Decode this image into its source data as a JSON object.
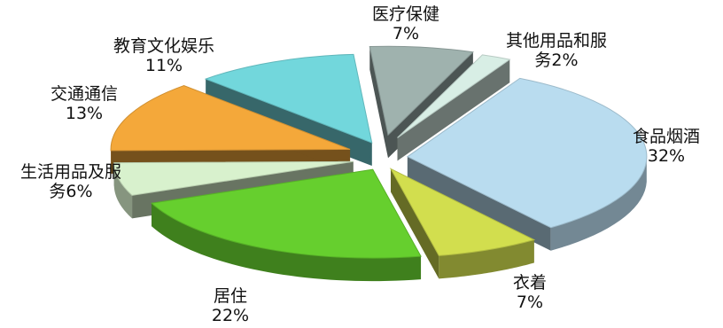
{
  "chart_data": {
    "type": "pie",
    "title": "",
    "style": "3d-exploded",
    "slices": [
      {
        "label": "食品烟酒",
        "value": 32,
        "value_label": "32%",
        "color": "#b9dcef"
      },
      {
        "label": "衣着",
        "value": 7,
        "value_label": "7%",
        "color": "#d2de4e"
      },
      {
        "label": "居住",
        "value": 22,
        "value_label": "22%",
        "color": "#66cf2e"
      },
      {
        "label": "生活用品及服务",
        "value": 6,
        "value_label": "6%",
        "color": "#d8f1cd"
      },
      {
        "label": "交通通信",
        "value": 13,
        "value_label": "13%",
        "color": "#f4a83a"
      },
      {
        "label": "教育文化娱乐",
        "value": 11,
        "value_label": "11%",
        "color": "#72d7dc"
      },
      {
        "label": "医疗保健",
        "value": 7,
        "value_label": "7%",
        "color": "#9fb2ae"
      },
      {
        "label": "其他用品和服务",
        "value": 2,
        "value_label": "2%",
        "color": "#d8eee5"
      }
    ],
    "label_lines": [
      [
        "食品烟酒",
        "32%"
      ],
      [
        "衣着",
        "7%"
      ],
      [
        "居住",
        "22%"
      ],
      [
        "生活用品及服",
        "务6%"
      ],
      [
        "交通通信",
        "13%"
      ],
      [
        "教育文化娱乐",
        "11%"
      ],
      [
        "医疗保健",
        "7%"
      ],
      [
        "其他用品和服",
        "务2%"
      ]
    ]
  }
}
